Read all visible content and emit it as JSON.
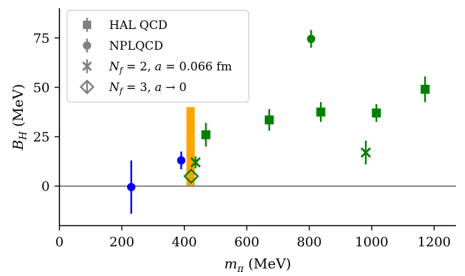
{
  "chart_data": {
    "type": "scatter",
    "xlabel": "m_π (MeV)",
    "ylabel": "B_H (MeV)",
    "xlim": [
      0,
      1270
    ],
    "ylim": [
      -20,
      90
    ],
    "xticks": [
      0,
      200,
      400,
      600,
      800,
      1000,
      1200
    ],
    "yticks": [
      0,
      25,
      50,
      75
    ],
    "grid": false,
    "reference_line_y": 0,
    "legend_position": "top-left",
    "legend": [
      {
        "label": "HAL QCD",
        "marker": "square",
        "text": "HAL QCD"
      },
      {
        "label": "NPLQCD",
        "marker": "circle",
        "text": "NPLQCD"
      },
      {
        "label": "N_f = 2, a = 0.066 fm",
        "marker": "x",
        "italic": "N",
        "sub": "f",
        "rest": " = 2, ",
        "italic2": "a",
        "rest2": " = 0.066 fm"
      },
      {
        "label": "N_f = 3, a → 0",
        "marker": "diamond",
        "italic": "N",
        "sub": "f",
        "rest": " = 3, ",
        "italic2": "a",
        "rest2": " → 0"
      }
    ],
    "series": [
      {
        "marker": "square",
        "color": "#008000",
        "points": [
          {
            "x": 469,
            "y": 26,
            "err": 6
          },
          {
            "x": 672,
            "y": 33.5,
            "err": 5.5
          },
          {
            "x": 837,
            "y": 37.5,
            "err": 5
          },
          {
            "x": 1015,
            "y": 37,
            "err": 4.5
          },
          {
            "x": 1171,
            "y": 49,
            "err": 6.5
          }
        ]
      },
      {
        "marker": "circle",
        "color": "#008000",
        "points": [
          {
            "x": 806,
            "y": 74.5,
            "err": 4.5
          }
        ]
      },
      {
        "marker": "circle",
        "color": "#0000ff",
        "points": [
          {
            "x": 230,
            "y": -0.5,
            "err": 13.5
          },
          {
            "x": 390,
            "y": 13,
            "err": 4.5
          }
        ]
      },
      {
        "marker": "x",
        "color": "#008000",
        "points": [
          {
            "x": 436,
            "y": 12,
            "err": 3
          },
          {
            "x": 981,
            "y": 17,
            "err": 6
          }
        ]
      },
      {
        "marker": "diamond",
        "color": "#008000",
        "points": [
          {
            "x": 422,
            "y": 5,
            "err": 0
          }
        ]
      }
    ],
    "band": {
      "x": 420,
      "y0": 0,
      "y1": 40,
      "color": "#ffa500"
    }
  }
}
